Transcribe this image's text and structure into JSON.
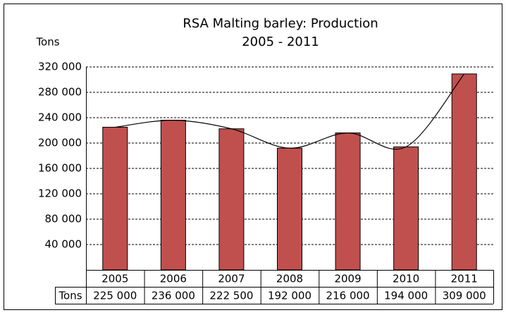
{
  "chart_data": {
    "type": "bar",
    "title": "RSA Malting barley: Production",
    "subtitle": "2005 - 2011",
    "y_label": "Tons",
    "categories": [
      "2005",
      "2006",
      "2007",
      "2008",
      "2009",
      "2010",
      "2011"
    ],
    "series": [
      {
        "name": "Tons",
        "color": "#c0504d",
        "values": [
          225000,
          236000,
          222500,
          192000,
          216000,
          194000,
          309000
        ],
        "value_labels": [
          "225 000",
          "236 000",
          "222 500",
          "192 000",
          "216 000",
          "194 000",
          "309 000"
        ]
      }
    ],
    "ylim": [
      0,
      320000
    ],
    "yticks": [
      {
        "value": 40000,
        "label": "40 000"
      },
      {
        "value": 80000,
        "label": "80 000"
      },
      {
        "value": 120000,
        "label": "120 000"
      },
      {
        "value": 160000,
        "label": "160 000"
      },
      {
        "value": 200000,
        "label": "200 000"
      },
      {
        "value": 240000,
        "label": "240 000"
      },
      {
        "value": 280000,
        "label": "280 000"
      },
      {
        "value": 320000,
        "label": "320 000"
      }
    ],
    "grid": true,
    "trend_line": "smooth"
  }
}
